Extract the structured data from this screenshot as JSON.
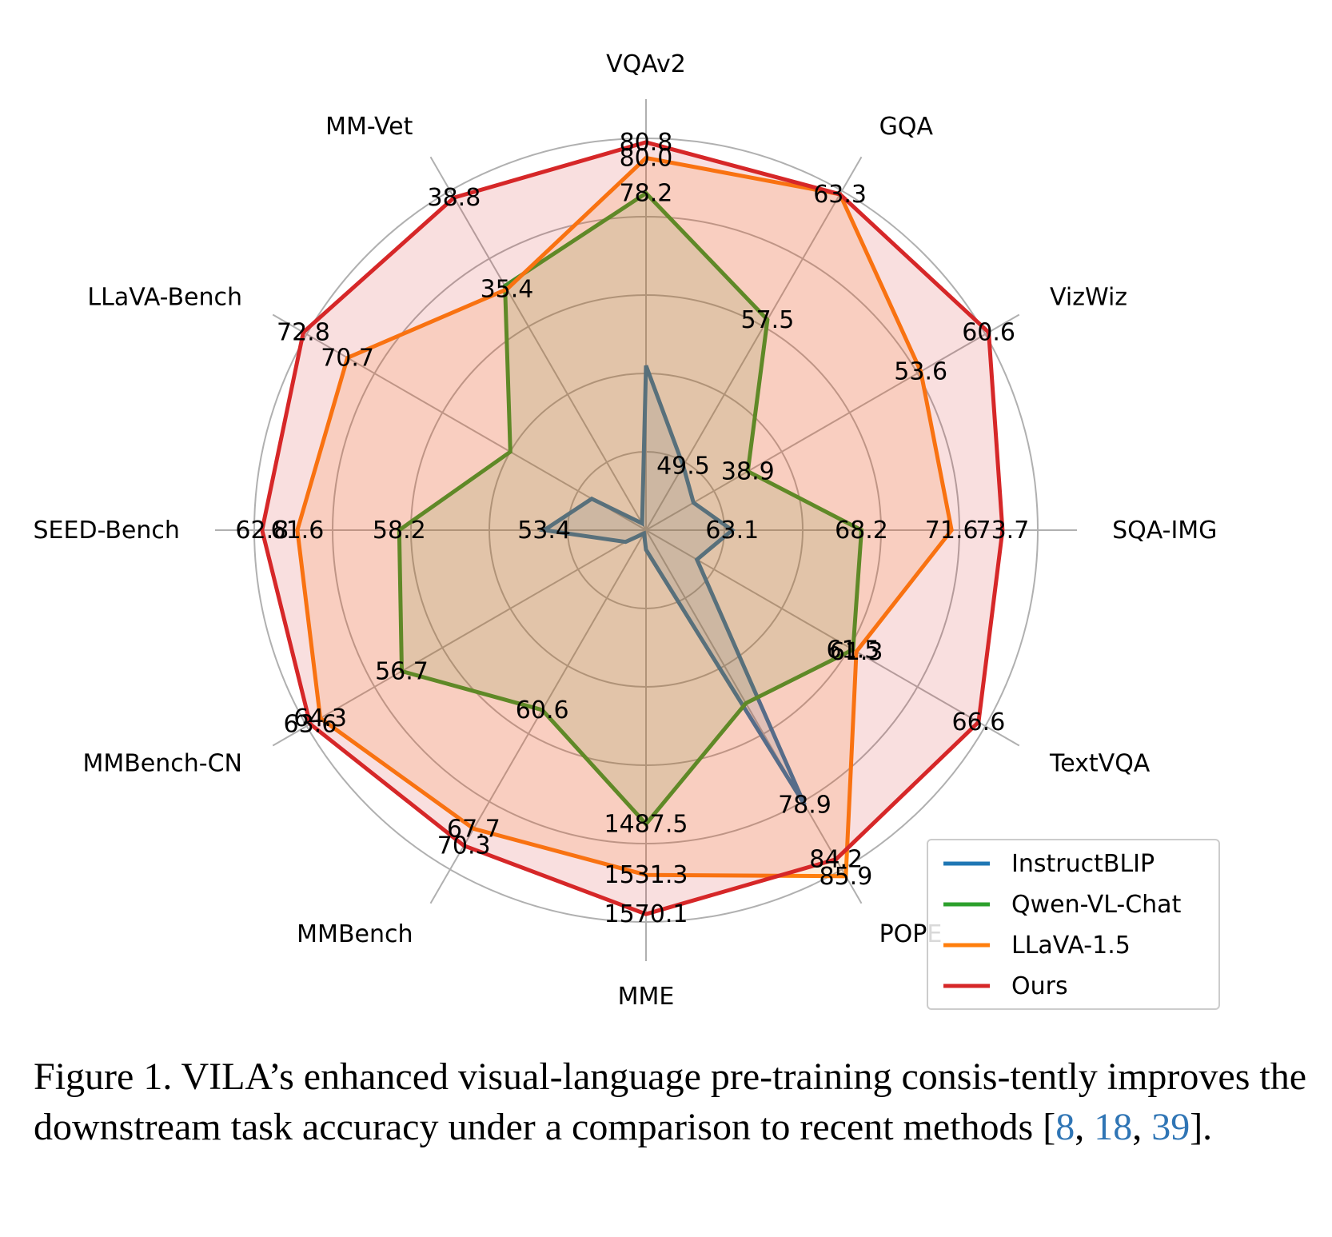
{
  "chart_data": {
    "type": "radar",
    "axes": [
      "VQAv2",
      "GQA",
      "VizWiz",
      "SQA-IMG",
      "TextVQA",
      "POPE",
      "MME",
      "MMBench",
      "MMBench-CN",
      "SEED-Bench",
      "LLaVA-Bench",
      "MM-Vet"
    ],
    "series": [
      {
        "name": "InstructBLIP",
        "color": "#1f77b4",
        "fill": false,
        "r": [
          0.42,
          0.19,
          0.14,
          0.22,
          0.15,
          0.81,
          0.05,
          0.01,
          0.06,
          0.26,
          0.16,
          0.02
        ],
        "labels": [
          "",
          "49.5",
          "",
          "63.1",
          "",
          "78.9",
          "",
          "",
          "",
          "53.4",
          "",
          ""
        ]
      },
      {
        "name": "Qwen-VL-Chat",
        "color": "#2ca02c",
        "fill": true,
        "r": [
          0.86,
          0.62,
          0.3,
          0.55,
          0.61,
          0.51,
          0.75,
          0.53,
          0.72,
          0.63,
          0.4,
          0.72
        ],
        "labels": [
          "78.2",
          "57.5",
          "38.9",
          "68.2",
          "61.5",
          "",
          "1487.5",
          "60.6",
          "56.7",
          "58.2",
          "",
          ""
        ]
      },
      {
        "name": "LLaVA-1.5",
        "color": "#ff7f0e",
        "fill": true,
        "r": [
          0.95,
          0.99,
          0.81,
          0.78,
          0.62,
          1.02,
          0.88,
          0.88,
          0.96,
          0.89,
          0.88,
          0.71
        ],
        "labels": [
          "80.0",
          "",
          "53.6",
          "71.6",
          "61.3",
          "85.9",
          "1531.3",
          "67.7",
          "64.3",
          "61.6",
          "70.7",
          "35.4"
        ]
      },
      {
        "name": "Ours",
        "color": "#d62728",
        "fill": true,
        "r": [
          0.99,
          0.99,
          1.01,
          0.91,
          0.98,
          0.97,
          0.98,
          0.93,
          0.99,
          0.98,
          1.01,
          0.98
        ],
        "labels": [
          "80.8",
          "63.3",
          "60.6",
          "73.7",
          "66.6",
          "84.2",
          "1570.1",
          "70.3",
          "63.6",
          "62.8",
          "72.8",
          "38.8"
        ]
      }
    ],
    "legend": "bottom-right",
    "grid": true
  },
  "caption": {
    "text_before": "Figure 1.  VILA’s enhanced visual-language pre-training consis-tently improves the downstream task accuracy under a comparison to recent methods [",
    "ref1": "8",
    "sep1": ", ",
    "ref2": "18",
    "sep2": ", ",
    "ref3": "39",
    "text_after": "]."
  }
}
